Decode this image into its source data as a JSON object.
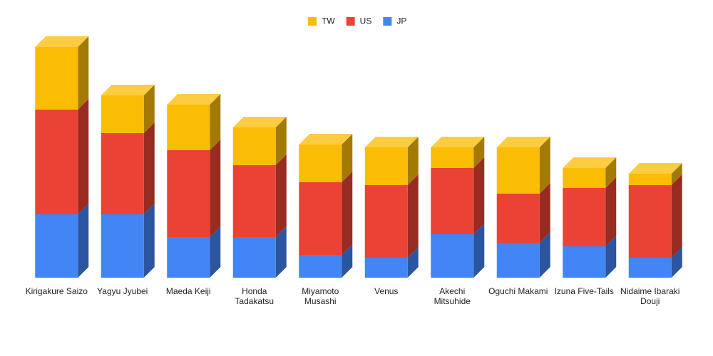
{
  "chart_data": {
    "type": "bar3d_stacked",
    "categories": [
      "Kirigakure Saizo",
      "Yagyu Jyubei",
      "Maeda Keiji",
      "Honda Tadakatsu",
      "Miyamoto Musashi",
      "Venus",
      "Akechi Mitsuhide",
      "Oguchi Makami",
      "Izuna Five-Tails",
      "Nidaime Ibaraki Douji"
    ],
    "series": [
      {
        "name": "TW",
        "color": "#fbbc04",
        "values": [
          88,
          53,
          64,
          53,
          53,
          53,
          29,
          65,
          28,
          16
        ]
      },
      {
        "name": "US",
        "color": "#ea4335",
        "values": [
          147,
          114,
          122,
          101,
          102,
          102,
          93,
          69,
          82,
          102
        ]
      },
      {
        "name": "JP",
        "color": "#4285f4",
        "values": [
          89,
          89,
          57,
          57,
          32,
          28,
          61,
          49,
          44,
          28
        ]
      }
    ],
    "ylim": [
      0,
      324
    ],
    "legend": "top"
  }
}
